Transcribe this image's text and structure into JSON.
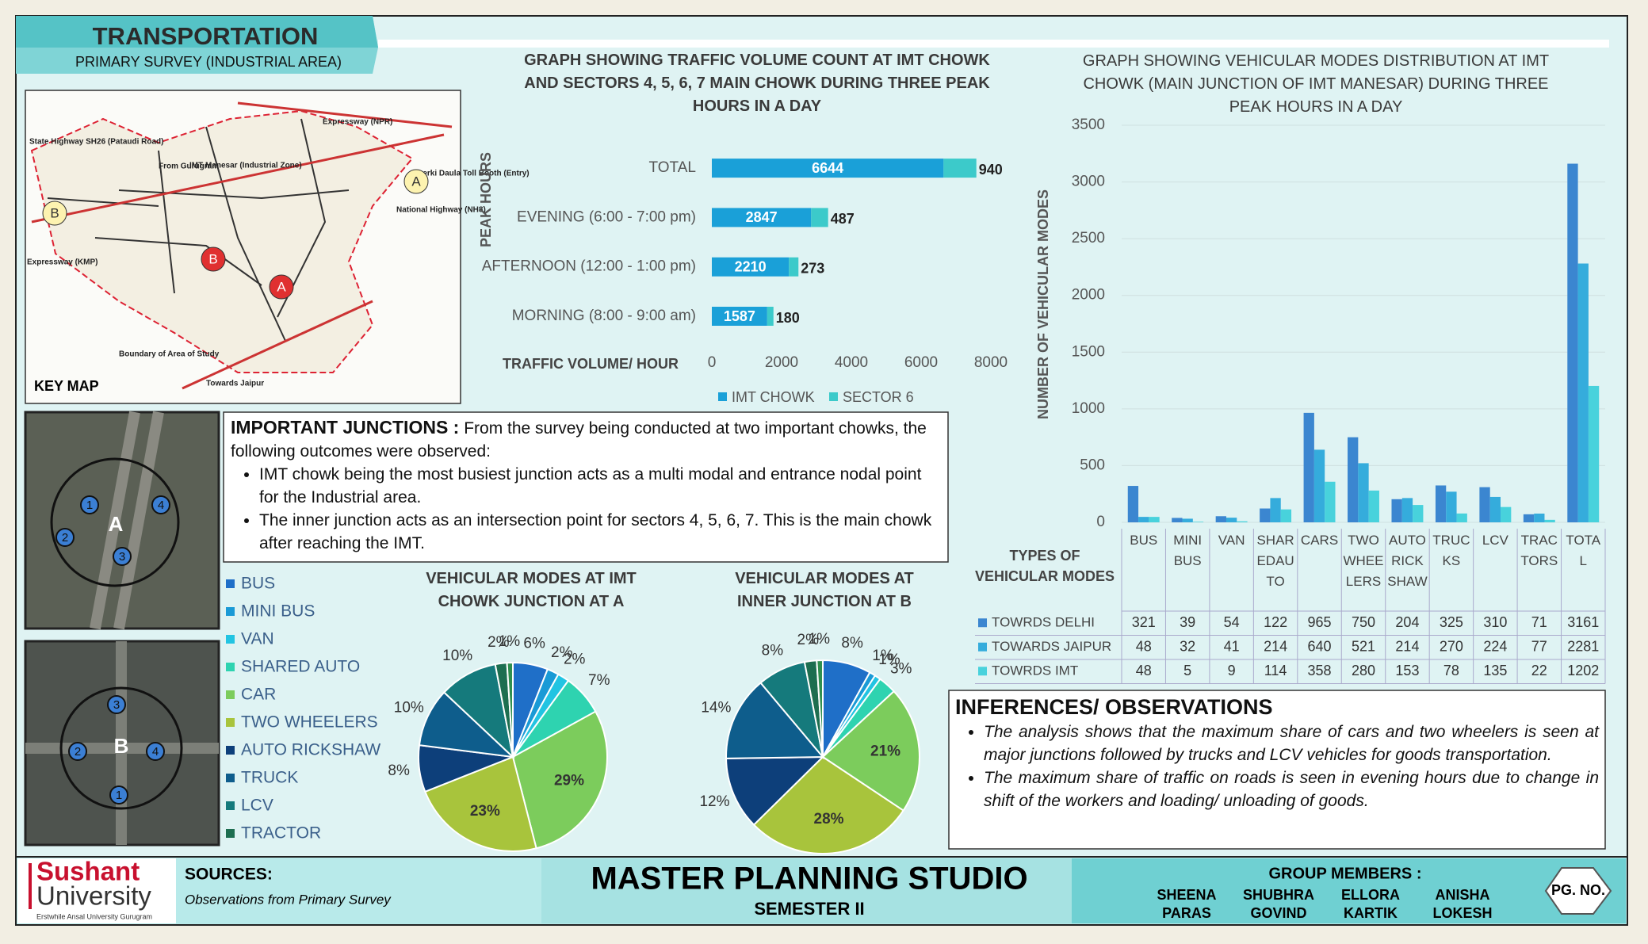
{
  "header": {
    "title": "TRANSPORTATION",
    "subtitle": "PRIMARY SURVEY (INDUSTRIAL AREA)"
  },
  "key_map": {
    "title": "KEY MAP",
    "labels": [
      "State Highway SH26 (Pataudi Road)",
      "IMT Manesar (Industrial Zone)",
      "Expressway (NPR)",
      "Kherki Daula Toll Booth (Entry)",
      "National Highway (NH8)",
      "Expressway (KMP)",
      "Boundary of Area of Study",
      "From Gurugram",
      "Towards Jaipur"
    ],
    "markers": [
      "A",
      "B"
    ]
  },
  "junction_photos": [
    {
      "label": "A",
      "points": [
        "1",
        "2",
        "3",
        "4"
      ]
    },
    {
      "label": "B",
      "points": [
        "1",
        "2",
        "3",
        "4"
      ]
    }
  ],
  "important_junctions": {
    "title": "IMPORTANT JUNCTIONS :",
    "text": "From the survey being conducted at two important chowks, the following outcomes were observed:",
    "bullets": [
      "IMT chowk being the most busiest junction acts as a multi modal and entrance nodal point for the Industrial area.",
      "The inner junction acts as an intersection point for sectors 4, 5, 6, 7. This is the main chowk after reaching the IMT."
    ]
  },
  "chart_data": [
    {
      "type": "bar",
      "orientation": "horizontal",
      "stacked": true,
      "title": "GRAPH SHOWING TRAFFIC VOLUME COUNT AT IMT CHOWK AND SECTORS 4, 5, 6, 7 MAIN CHOWK DURING THREE PEAK HOURS IN A DAY",
      "x_label": "TRAFFIC VOLUME/ HOUR",
      "y_label": "PEAK HOURS",
      "categories": [
        "MORNING (8:00 - 9:00 am)",
        "AFTERNOON (12:00 - 1:00 pm)",
        "EVENING (6:00 - 7:00 pm)",
        "TOTAL"
      ],
      "series": [
        {
          "name": "IMT CHOWK",
          "color": "#1aa0d8",
          "values": [
            1587,
            2210,
            2847,
            6644
          ]
        },
        {
          "name": "SECTOR 6",
          "color": "#3ccaca",
          "values": [
            180,
            273,
            487,
            940
          ]
        }
      ],
      "xlim": [
        0,
        8000
      ],
      "xticks": [
        0,
        2000,
        4000,
        6000,
        8000
      ],
      "legend": "bottom"
    },
    {
      "type": "bar",
      "orientation": "vertical",
      "title": "GRAPH SHOWING VEHICULAR MODES DISTRIBUTION AT IMT CHOWK (MAIN JUNCTION OF IMT MANESAR) DURING THREE PEAK HOURS IN A DAY",
      "y_label": "NUMBER OF VEHICULAR MODES",
      "table_title": "TYPES OF VEHICULAR MODES",
      "categories": [
        "BUS",
        "MINI BUS",
        "VAN",
        "SHAREDAUTO",
        "CARS",
        "TWO WHEELERS",
        "AUTO RICKSHAW",
        "TRUCKS",
        "LCV",
        "TRACTORS",
        "TOTAL"
      ],
      "series": [
        {
          "name": "TOWRDS DELHI",
          "color": "#3b86d0",
          "values": [
            321,
            39,
            54,
            122,
            965,
            750,
            204,
            325,
            310,
            71,
            3161
          ]
        },
        {
          "name": "TOWARDS JAIPUR",
          "color": "#35acdc",
          "values": [
            48,
            32,
            41,
            214,
            640,
            521,
            214,
            270,
            224,
            77,
            2281
          ]
        },
        {
          "name": "TOWRDS IMT",
          "color": "#48d2dc",
          "values": [
            48,
            5,
            9,
            114,
            358,
            280,
            153,
            78,
            135,
            22,
            1202
          ]
        }
      ],
      "ylim": [
        0,
        3500
      ],
      "yticks": [
        0,
        500,
        1000,
        1500,
        2000,
        2500,
        3000,
        3500
      ],
      "grid": true
    },
    {
      "type": "pie",
      "title": "VEHICULAR MODES AT IMT CHOWK JUNCTION AT A",
      "categories": [
        "BUS",
        "MINI BUS",
        "VAN",
        " SHARED AUTO",
        "CAR",
        "TWO WHEELERS",
        "AUTO RICKSHAW",
        "TRUCK",
        "LCV",
        "TRACTOR",
        null
      ],
      "colors": [
        "#1f6fc8",
        "#1a9ad6",
        "#22c4e2",
        "#2ed3b0",
        "#7ccc5c",
        "#a8c43c",
        "#0d3f7a",
        "#0e5d8c",
        "#157a7c",
        "#1d6e50",
        "#2f8f4f"
      ],
      "values": [
        6,
        2,
        2,
        7,
        29,
        23,
        8,
        10,
        10,
        2,
        1
      ],
      "value_labels": [
        "6%",
        "2%",
        "2%",
        "7%",
        "29%",
        "23%",
        "8%",
        "10%",
        "10%",
        "2%",
        "1%"
      ]
    },
    {
      "type": "pie",
      "title": "VEHICULAR MODES AT INNER JUNCTION AT B",
      "colors": [
        "#1f6fc8",
        "#1a9ad6",
        "#22c4e2",
        "#2ed3b0",
        "#7ccc5c",
        "#a8c43c",
        "#0d3f7a",
        "#0e5d8c",
        "#157a7c",
        "#1d6e50",
        "#2f8f4f"
      ],
      "values": [
        8,
        1,
        1,
        3,
        21,
        28,
        12,
        14,
        8,
        2,
        1
      ],
      "value_labels": [
        "8%",
        "1%",
        "1%",
        "3%",
        "21%",
        "28%",
        "12%",
        "14%",
        "8%",
        "2%",
        "1%"
      ]
    }
  ],
  "inferences": {
    "title": "INFERENCES/ OBSERVATIONS",
    "bullets": [
      "The analysis shows that the maximum share of  cars and two wheelers is seen at major junctions followed by trucks and LCV vehicles for goods transportation.",
      "The maximum share of traffic on roads is seen in evening hours due to change in shift of the workers and loading/ unloading of goods."
    ]
  },
  "footer": {
    "logo_name": "Sushant",
    "logo_sub": "University",
    "logo_tagline": "Erstwhile Ansal University Gurugram",
    "sources_title": "SOURCES:",
    "sources_text": "Observations from Primary Survey",
    "studio": "MASTER PLANNING STUDIO",
    "semester": "SEMESTER II",
    "group_title": "GROUP MEMBERS :",
    "members": [
      "SHEENA",
      "PARAS",
      "SHUBHRA",
      "GOVIND",
      "ELLORA",
      "KARTIK",
      "ANISHA",
      "LOKESH"
    ],
    "page": "PG. NO."
  }
}
